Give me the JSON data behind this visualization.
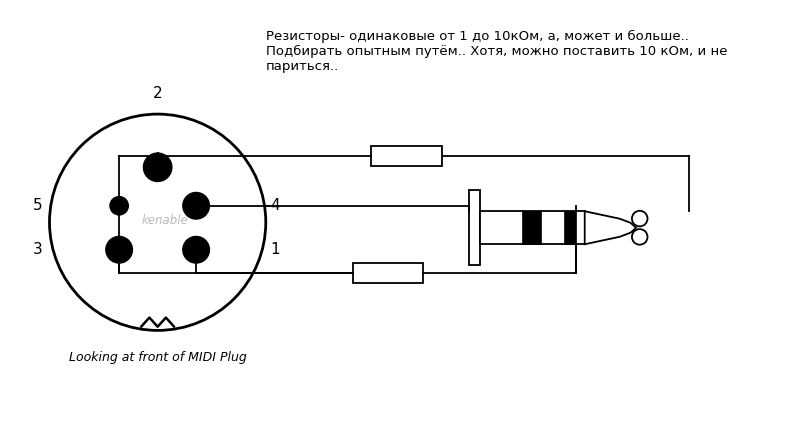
{
  "bg_color": "#ffffff",
  "text_color": "#000000",
  "title_text": "Резисторы- одинаковые от 1 до 10кОм, а, может и больше..\nПодбирать опытным путём.. Хотя, можно поставить 10 кОм, и не\nпариться..",
  "title_fontsize": 9.5,
  "label_2": "2",
  "label_5": "5",
  "label_4": "4",
  "label_3": "3",
  "label_1": "1",
  "subtitle": "Looking at front of MIDI Plug",
  "watermark": "kenable",
  "lw": 1.3
}
